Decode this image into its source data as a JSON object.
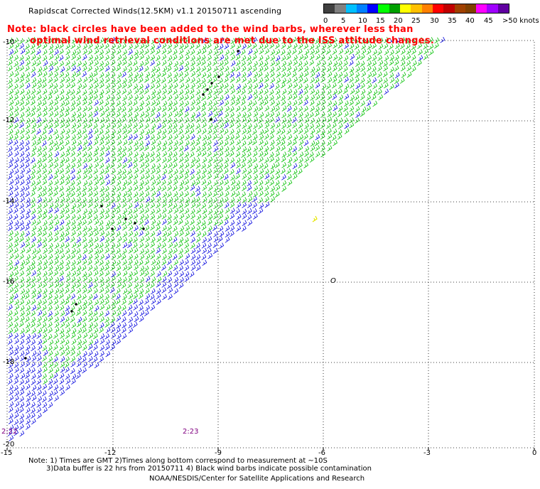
{
  "header": {
    "title": "Rapidscat Corrected Winds(12.5KM) v1.1 20150711 ascending",
    "note_line1": "Note: black circles have been added to the wind barbs, wherever less than",
    "note_line2": "optimal wind retrieval conditions are met due to the ISS attitude changes."
  },
  "legend": {
    "unit": ">50 knots",
    "colors": [
      "#404040",
      "#808080",
      "#00c0ff",
      "#0080ff",
      "#0000ff",
      "#00ff00",
      "#00a000",
      "#ffff00",
      "#ffc000",
      "#ff8000",
      "#ff0000",
      "#c00000",
      "#a04000",
      "#804000",
      "#ff00ff",
      "#a000ff",
      "#6000a0"
    ],
    "labels": [
      "0",
      "5",
      "10",
      "15",
      "20",
      "25",
      "30",
      "35",
      "40",
      "45"
    ]
  },
  "map": {
    "longitude_ticks": [
      "-15",
      "-12",
      "-9",
      "-6",
      "-3",
      "0"
    ],
    "latitude_ticks": [
      "-10",
      "-12",
      "-14",
      "-16",
      "-18",
      "-20"
    ],
    "time_labels": [
      "2:22",
      "2:23"
    ],
    "marker_label": "O",
    "colors": {
      "green": "#00c000",
      "blue": "#0000dd",
      "yellow": "#e6e600",
      "grid": "#000000",
      "contamination": "#000000"
    }
  },
  "footer": {
    "line1": "Note: 1) Times are GMT 2)Times along bottom correspond to measurement at ~10S",
    "line2": "3)Data buffer is 22 hrs from 20150711 4) Black wind barbs indicate possible contamination",
    "line3": "NOAA/NESDIS/Center for Satellite Applications and Research"
  }
}
